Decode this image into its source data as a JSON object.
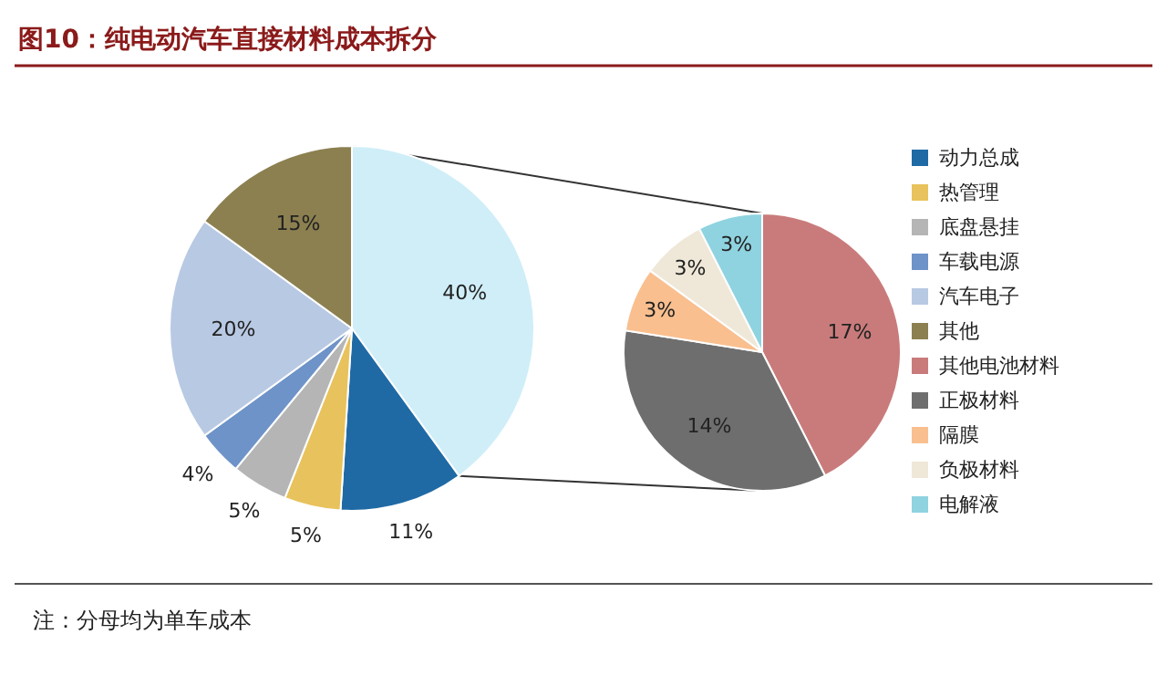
{
  "chart_data": [
    {
      "type": "pie",
      "title": "图10：纯电动汽车直接材料成本拆分",
      "annotations": [
        "注：分母均为单车成本"
      ],
      "legend": "right",
      "categories": [
        null,
        "动力总成",
        "热管理",
        "底盘悬挂",
        "车载电源",
        "汽车电子",
        "其他"
      ],
      "values": [
        40,
        11,
        5,
        5,
        4,
        20,
        15
      ],
      "value_labels": [
        "40%",
        "11%",
        "5%",
        "5%",
        "4%",
        "20%",
        "15%"
      ],
      "colors": [
        "#cfeef8",
        "#1f6aa5",
        "#e8c25c",
        "#b5b5b5",
        "#6e93c8",
        "#b8c9e3",
        "#8c8050"
      ]
    },
    {
      "type": "pie",
      "legend": "right",
      "categories": [
        "其他电池材料",
        "正极材料",
        "隔膜",
        "负极材料",
        "电解液"
      ],
      "values": [
        17,
        14,
        3,
        3,
        3
      ],
      "value_labels": [
        "17%",
        "14%",
        "3%",
        "3%",
        "3%"
      ],
      "colors": [
        "#c97b7b",
        "#6e6e6e",
        "#f9bf8f",
        "#efe8d8",
        "#8fd3e0"
      ]
    }
  ]
}
